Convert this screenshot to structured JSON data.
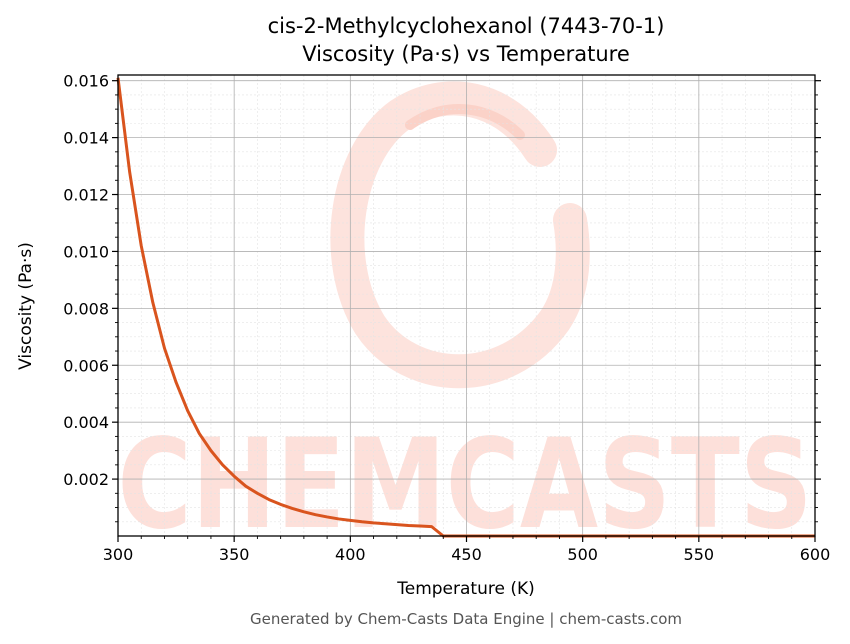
{
  "chart_data": {
    "type": "line",
    "title_line1": "cis-2-Methylcyclohexanol (7443-70-1)",
    "title_line2": "Viscosity (Pa·s) vs Temperature",
    "xlabel": "Temperature (K)",
    "ylabel": "Viscosity (Pa·s)",
    "xlim": [
      300,
      600
    ],
    "ylim": [
      0,
      0.0162
    ],
    "x_ticks": [
      300,
      350,
      400,
      450,
      500,
      550,
      600
    ],
    "x_tick_labels": [
      "300",
      "350",
      "400",
      "450",
      "500",
      "550",
      "600"
    ],
    "y_ticks": [
      0.002,
      0.004,
      0.006,
      0.008,
      0.01,
      0.012,
      0.014,
      0.016
    ],
    "y_tick_labels": [
      "0.002",
      "0.004",
      "0.006",
      "0.008",
      "0.010",
      "0.012",
      "0.014",
      "0.016"
    ],
    "grid": true,
    "line_color": "#d9541e",
    "series": [
      {
        "x": [
          300,
          305,
          310,
          315,
          320,
          325,
          330,
          335,
          340,
          345,
          350,
          355,
          360,
          365,
          370,
          375,
          380,
          385,
          390,
          395,
          400,
          405,
          410,
          415,
          420,
          425,
          430,
          435,
          440,
          445,
          450,
          500,
          550,
          600
        ],
        "values": [
          0.0161,
          0.0128,
          0.0102,
          0.0082,
          0.0066,
          0.0054,
          0.0044,
          0.0036,
          0.003,
          0.0025,
          0.0021,
          0.00175,
          0.0015,
          0.00128,
          0.00111,
          0.00097,
          0.00085,
          0.00075,
          0.00067,
          0.0006,
          0.00055,
          0.0005,
          0.00046,
          0.00043,
          0.0004,
          0.00037,
          0.00035,
          0.00033,
          0.0,
          0.0,
          0.0,
          0.0,
          0.0,
          0.0
        ]
      }
    ]
  },
  "watermark": {
    "text": "CHEMCASTS",
    "color": "#fde0da"
  },
  "footer": "Generated by Chem-Casts Data Engine | chem-casts.com"
}
